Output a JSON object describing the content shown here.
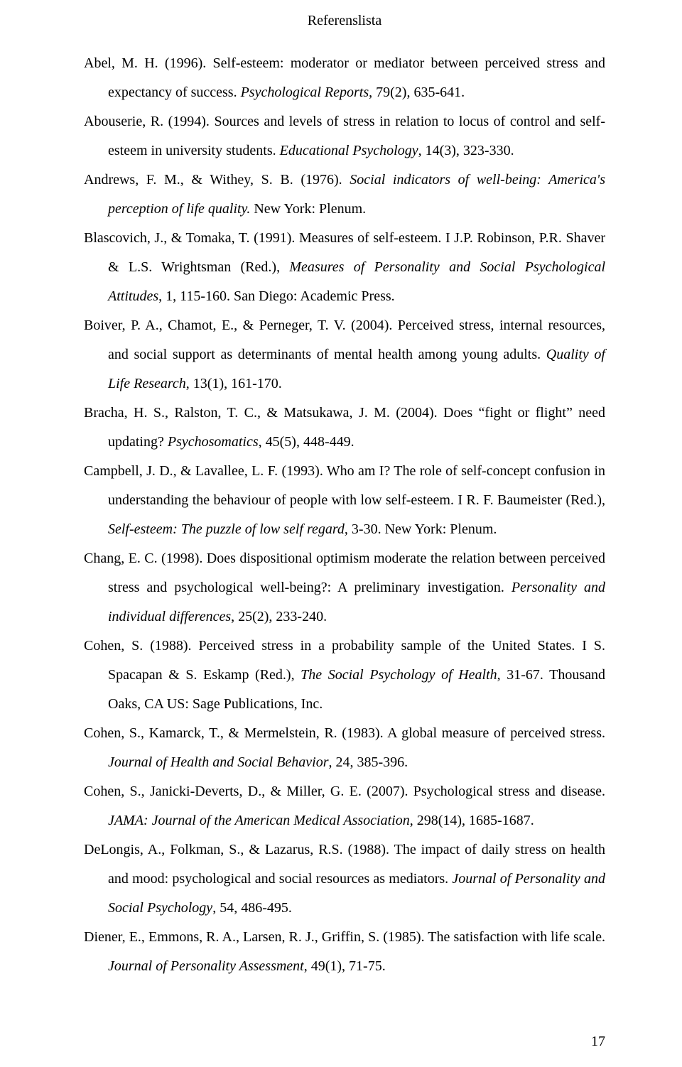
{
  "title": "Referenslista",
  "page_number": "17",
  "references": [
    {
      "before": "Abel, M. H. (1996). Self-esteem: moderator or mediator between perceived stress and expectancy of success. ",
      "italic": "Psychological Reports",
      "after": ", 79(2), 635-641."
    },
    {
      "before": "Abouserie, R. (1994). Sources and levels of stress in relation to locus of control and self-esteem in university students. ",
      "italic": "Educational Psychology",
      "after": ", 14(3), 323-330."
    },
    {
      "before": "Andrews, F. M., & Withey, S. B. (1976). ",
      "italic": "Social indicators of well-being: America's perception of life quality.",
      "after": " New York: Plenum."
    },
    {
      "before": "Blascovich, J., & Tomaka, T. (1991). Measures of self-esteem. I J.P. Robinson, P.R. Shaver & L.S. Wrightsman (Red.), ",
      "italic": "Measures of Personality and Social Psychological Attitudes",
      "after": ", 1, 115-160. San Diego: Academic Press."
    },
    {
      "before": "Boiver, P. A., Chamot, E., & Perneger, T. V. (2004). Perceived stress, internal resources, and social support as determinants of mental health among young adults. ",
      "italic": "Quality of Life Research",
      "after": ", 13(1), 161-170."
    },
    {
      "before": "Bracha, H. S., Ralston, T. C., & Matsukawa, J. M. (2004). Does “fight or flight” need updating? ",
      "italic": "Psychosomatics",
      "after": ", 45(5), 448-449."
    },
    {
      "before": "Campbell, J. D., & Lavallee, L. F. (1993). Who am I? The role of self-concept confusion in understanding the behaviour of people with low self-esteem. I R. F. Baumeister (Red.), ",
      "italic": "Self-esteem: The puzzle of low self regard",
      "after": ", 3-30. New York: Plenum."
    },
    {
      "before": "Chang, E. C. (1998). Does dispositional optimism moderate the relation between perceived stress and psychological well-being?: A preliminary investigation. ",
      "italic": "Personality and individual differences",
      "after": ", 25(2), 233-240."
    },
    {
      "before": "Cohen, S. (1988). Perceived stress in a probability sample of the United States. I S. Spacapan & S. Eskamp (Red.), ",
      "italic": "The Social Psychology of Health",
      "after": ", 31-67. Thousand Oaks, CA US: Sage Publications, Inc."
    },
    {
      "before": "Cohen, S., Kamarck, T., & Mermelstein, R. (1983). A global measure of perceived stress. ",
      "italic": "Journal of Health and Social Behavior",
      "after": ", 24, 385-396."
    },
    {
      "before": "Cohen, S., Janicki-Deverts, D., & Miller, G. E. (2007). Psychological stress and disease. ",
      "italic": "JAMA: Journal of the American Medical Association",
      "after": ", 298(14), 1685-1687."
    },
    {
      "before": "DeLongis, A., Folkman, S., & Lazarus, R.S. (1988). The impact of daily stress on health and mood: psychological and social resources as mediators. ",
      "italic": "Journal of Personality and Social Psychology",
      "after": ", 54, 486-495."
    },
    {
      "before": "Diener, E., Emmons, R. A., Larsen, R. J., Griffin, S. (1985). The satisfaction with life scale. ",
      "italic": "Journal of Personality Assessment",
      "after": ", 49(1), 71-75."
    }
  ]
}
